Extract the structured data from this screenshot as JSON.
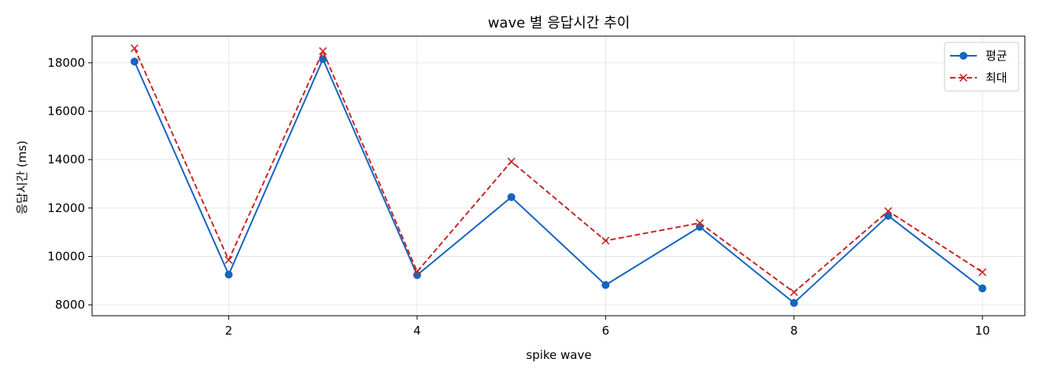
{
  "chart_data": {
    "type": "line",
    "title": "wave 별 응답시간 추이",
    "xlabel": "spike wave",
    "ylabel": "응답시간 (ms)",
    "x": [
      1,
      2,
      3,
      4,
      5,
      6,
      7,
      8,
      9,
      10
    ],
    "xlim": [
      0.55,
      10.45
    ],
    "ylim": [
      7550,
      19100
    ],
    "xticks": [
      2,
      4,
      6,
      8,
      10
    ],
    "yticks": [
      8000,
      10000,
      12000,
      14000,
      16000,
      18000
    ],
    "grid": true,
    "legend_position": "top-right",
    "series": [
      {
        "name": "평균",
        "values": [
          18050,
          9250,
          18150,
          9230,
          12450,
          8820,
          11220,
          8080,
          11680,
          8680
        ],
        "color": "#1565c0",
        "line_style": "solid",
        "marker": "circle"
      },
      {
        "name": "최대",
        "values": [
          18600,
          9850,
          18480,
          9370,
          13920,
          10650,
          11380,
          8520,
          11870,
          9350
        ],
        "color": "#c62828",
        "line_style": "dashed",
        "marker": "x"
      }
    ]
  }
}
